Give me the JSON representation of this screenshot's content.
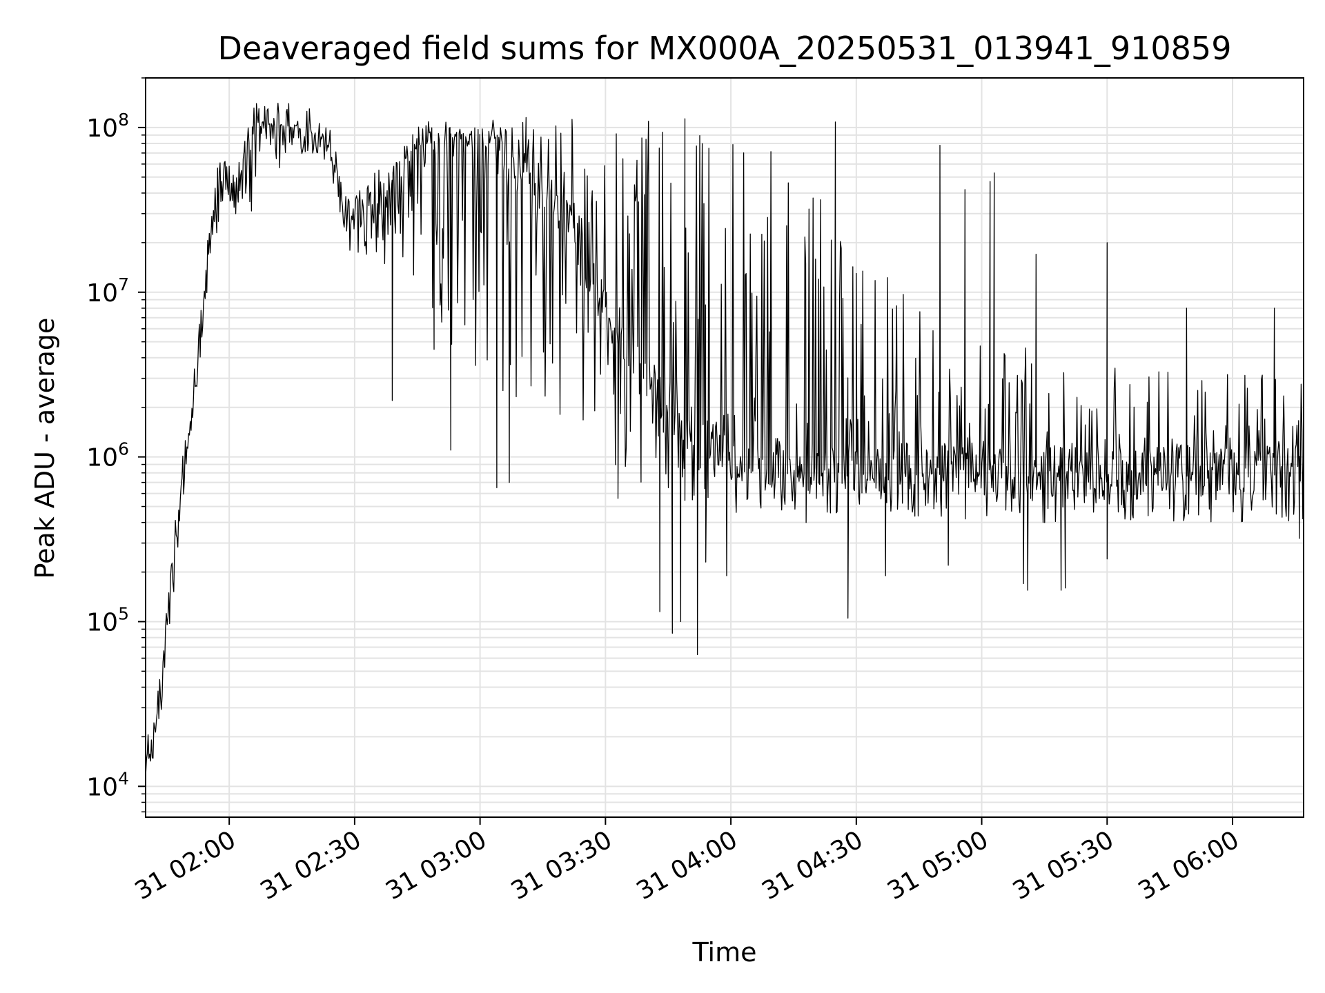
{
  "chart_data": {
    "type": "line",
    "title": "Deaveraged field sums for MX000A_20250531_013941_910859",
    "xlabel": "Time",
    "ylabel": "Peak ADU - average",
    "yscale": "log",
    "ylim": [
      6500,
      200000000
    ],
    "xlim": [
      "2025-05-31 01:40",
      "2025-05-31 06:17"
    ],
    "grid": true,
    "line_color": "#000000",
    "x_ticks": [
      "2025-05-31 02:00",
      "2025-05-31 02:30",
      "2025-05-31 03:00",
      "2025-05-31 03:30",
      "2025-05-31 04:00",
      "2025-05-31 04:30",
      "2025-05-31 05:00",
      "2025-05-31 05:30",
      "2025-05-31 06:00"
    ],
    "x_tick_labels": [
      "31 02:00",
      "31 02:30",
      "31 03:00",
      "31 03:30",
      "31 04:00",
      "31 04:30",
      "31 05:00",
      "31 05:30",
      "31 06:00"
    ],
    "y_ticks": [
      10000,
      100000,
      1000000,
      10000000,
      100000000
    ],
    "y_tick_labels": [
      {
        "base": "10",
        "exp": "4"
      },
      {
        "base": "10",
        "exp": "5"
      },
      {
        "base": "10",
        "exp": "6"
      },
      {
        "base": "10",
        "exp": "7"
      },
      {
        "base": "10",
        "exp": "8"
      }
    ],
    "series": [
      {
        "line": [
          [
            "2025-05-31 01:40",
            13000
          ],
          [
            "2025-05-31 01:42",
            20000
          ],
          [
            "2025-05-31 01:44",
            50000
          ],
          [
            "2025-05-31 01:46",
            150000
          ],
          [
            "2025-05-31 01:48",
            500000
          ],
          [
            "2025-05-31 01:50",
            1200000
          ],
          [
            "2025-05-31 01:52",
            3000000
          ],
          [
            "2025-05-31 01:54",
            8000000
          ],
          [
            "2025-05-31 01:56",
            25000000
          ],
          [
            "2025-05-31 01:58",
            45000000
          ],
          [
            "2025-05-31 02:00",
            50000000
          ],
          [
            "2025-05-31 02:02",
            40000000
          ],
          [
            "2025-05-31 02:04",
            60000000
          ],
          [
            "2025-05-31 02:06",
            100000000
          ],
          [
            "2025-05-31 02:10",
            104000000
          ],
          [
            "2025-05-31 02:15",
            100000000
          ],
          [
            "2025-05-31 02:20",
            95000000
          ],
          [
            "2025-05-31 02:24",
            80000000
          ],
          [
            "2025-05-31 02:26",
            50000000
          ],
          [
            "2025-05-31 02:28",
            25000000
          ],
          [
            "2025-05-31 02:31",
            30000000
          ],
          [
            "2025-05-31 02:35",
            35000000
          ],
          [
            "2025-05-31 02:40",
            45000000
          ],
          [
            "2025-05-31 02:45",
            75000000
          ],
          [
            "2025-05-31 02:50",
            80000000
          ],
          [
            "2025-05-31 02:55",
            90000000
          ],
          [
            "2025-05-31 03:00",
            90000000
          ],
          [
            "2025-05-31 03:10",
            60000000
          ],
          [
            "2025-05-31 03:20",
            30000000
          ],
          [
            "2025-05-31 03:30",
            8000000
          ],
          [
            "2025-05-31 03:40",
            3000000
          ],
          [
            "2025-05-31 03:50",
            1500000
          ],
          [
            "2025-05-31 04:00",
            1000000
          ],
          [
            "2025-05-31 04:15",
            900000
          ],
          [
            "2025-05-31 04:30",
            800000
          ],
          [
            "2025-05-31 04:45",
            900000
          ],
          [
            "2025-05-31 05:00",
            800000
          ],
          [
            "2025-05-31 05:15",
            850000
          ],
          [
            "2025-05-31 05:30",
            800000
          ],
          [
            "2025-05-31 05:45",
            850000
          ],
          [
            "2025-05-31 06:00",
            800000
          ],
          [
            "2025-05-31 06:10",
            750000
          ],
          [
            "2025-05-31 06:16",
            1200000
          ]
        ],
        "envelope": {
          "high": [
            [
              "2025-05-31 01:40",
              15000
            ],
            [
              "2025-05-31 01:44",
              50000
            ],
            [
              "2025-05-31 01:48",
              500000
            ],
            [
              "2025-05-31 01:52",
              3000000
            ],
            [
              "2025-05-31 01:56",
              50000000
            ],
            [
              "2025-05-31 02:00",
              95000000
            ],
            [
              "2025-05-31 02:05",
              110000000
            ],
            [
              "2025-05-31 02:15",
              105000000
            ],
            [
              "2025-05-31 02:24",
              85000000
            ],
            [
              "2025-05-31 02:28",
              40000000
            ],
            [
              "2025-05-31 02:35",
              55000000
            ],
            [
              "2025-05-31 02:45",
              80000000
            ],
            [
              "2025-05-31 02:55",
              95000000
            ],
            [
              "2025-05-31 03:10",
              110000000
            ],
            [
              "2025-05-31 03:20",
              110000000
            ],
            [
              "2025-05-31 03:30",
              110000000
            ],
            [
              "2025-05-31 03:45",
              110000000
            ],
            [
              "2025-05-31 04:00",
              100000000
            ],
            [
              "2025-05-31 04:15",
              60000000
            ],
            [
              "2025-05-31 04:30",
              20000000
            ],
            [
              "2025-05-31 04:45",
              8000000
            ],
            [
              "2025-05-31 05:00",
              5000000
            ],
            [
              "2025-05-31 05:15",
              4500000
            ],
            [
              "2025-05-31 05:30",
              4000000
            ],
            [
              "2025-05-31 05:45",
              3500000
            ],
            [
              "2025-05-31 06:00",
              3500000
            ],
            [
              "2025-05-31 06:16",
              3000000
            ]
          ],
          "low": [
            [
              "2025-05-31 01:40",
              10000
            ],
            [
              "2025-05-31 01:44",
              30000
            ],
            [
              "2025-05-31 01:48",
              300000
            ],
            [
              "2025-05-31 01:52",
              2000000
            ],
            [
              "2025-05-31 01:56",
              20000000
            ],
            [
              "2025-05-31 02:00",
              25000000
            ],
            [
              "2025-05-31 02:05",
              25000000
            ],
            [
              "2025-05-31 02:15",
              70000000
            ],
            [
              "2025-05-31 02:24",
              70000000
            ],
            [
              "2025-05-31 02:28",
              18000000
            ],
            [
              "2025-05-31 02:35",
              15000000
            ],
            [
              "2025-05-31 02:45",
              12000000
            ],
            [
              "2025-05-31 02:55",
              3000000
            ],
            [
              "2025-05-31 03:10",
              2000000
            ],
            [
              "2025-05-31 03:20",
              1500000
            ],
            [
              "2025-05-31 03:30",
              1000000
            ],
            [
              "2025-05-31 03:45",
              500000
            ],
            [
              "2025-05-31 04:00",
              450000
            ],
            [
              "2025-05-31 04:15",
              450000
            ],
            [
              "2025-05-31 04:30",
              450000
            ],
            [
              "2025-05-31 04:45",
              420000
            ],
            [
              "2025-05-31 05:00",
              400000
            ],
            [
              "2025-05-31 05:15",
              380000
            ],
            [
              "2025-05-31 05:30",
              400000
            ],
            [
              "2025-05-31 05:45",
              400000
            ],
            [
              "2025-05-31 06:00",
              400000
            ],
            [
              "2025-05-31 06:16",
              380000
            ]
          ]
        },
        "peaks": [
          [
            "2025-05-31 02:06",
            112000000
          ],
          [
            "2025-05-31 03:11",
            115000000
          ],
          [
            "2025-05-31 03:22",
            112000000
          ],
          [
            "2025-05-31 03:49",
            113000000
          ],
          [
            "2025-05-31 04:25",
            108000000
          ],
          [
            "2025-05-31 04:50",
            78000000
          ],
          [
            "2025-05-31 04:56",
            42000000
          ],
          [
            "2025-05-31 05:03",
            53000000
          ],
          [
            "2025-05-31 05:02",
            47000000
          ],
          [
            "2025-05-31 05:13",
            17000000
          ],
          [
            "2025-05-31 05:30",
            20000000
          ],
          [
            "2025-05-31 05:49",
            8000000
          ],
          [
            "2025-05-31 06:10",
            8000000
          ],
          [
            "2025-05-31 04:21",
            12000000
          ],
          [
            "2025-05-31 04:30",
            13000000
          ]
        ],
        "dips": [
          [
            "2025-05-31 02:39",
            2200000
          ],
          [
            "2025-05-31 02:49",
            4500000
          ],
          [
            "2025-05-31 02:53",
            1100000
          ],
          [
            "2025-05-31 03:04",
            650000
          ],
          [
            "2025-05-31 03:07",
            700000
          ],
          [
            "2025-05-31 03:33",
            560000
          ],
          [
            "2025-05-31 03:43",
            115000
          ],
          [
            "2025-05-31 03:46",
            85000
          ],
          [
            "2025-05-31 03:48",
            100000
          ],
          [
            "2025-05-31 03:52",
            63000
          ],
          [
            "2025-05-31 03:54",
            230000
          ],
          [
            "2025-05-31 03:59",
            190000
          ],
          [
            "2025-05-31 04:18",
            400000
          ],
          [
            "2025-05-31 04:28",
            105000
          ],
          [
            "2025-05-31 04:37",
            190000
          ],
          [
            "2025-05-31 04:52",
            220000
          ],
          [
            "2025-05-31 05:10",
            170000
          ],
          [
            "2025-05-31 05:11",
            155000
          ],
          [
            "2025-05-31 05:19",
            155000
          ],
          [
            "2025-05-31 05:20",
            160000
          ],
          [
            "2025-05-31 05:30",
            240000
          ],
          [
            "2025-05-31 06:16",
            320000
          ]
        ]
      }
    ]
  }
}
